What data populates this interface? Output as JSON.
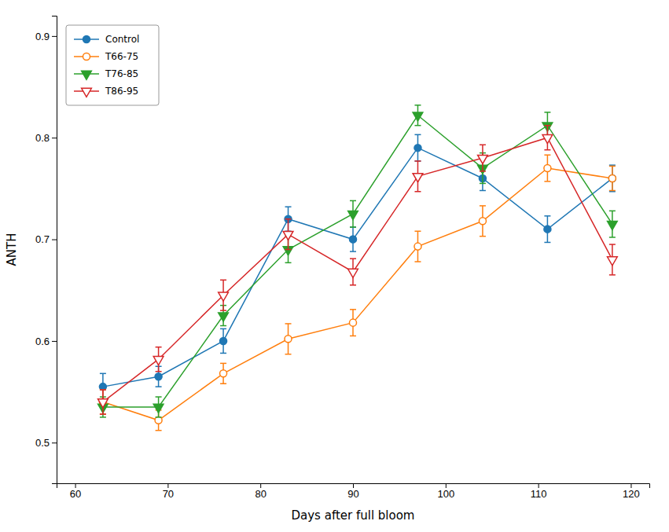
{
  "chart_data": {
    "type": "line",
    "x": [
      63,
      69,
      76,
      83,
      90,
      97,
      104,
      111,
      118
    ],
    "xlabel": "Days after full bloom",
    "ylabel": "ANTH",
    "xlim": [
      58,
      122
    ],
    "ylim": [
      0.46,
      0.92
    ],
    "xticks": [
      60,
      70,
      80,
      90,
      100,
      110,
      120
    ],
    "yticks": [
      0.5,
      0.6,
      0.7,
      0.8,
      0.9
    ],
    "legend": "upper-left",
    "series": [
      {
        "name": "Control",
        "marker": "circle",
        "values": [
          0.555,
          0.565,
          0.6,
          0.72,
          0.7,
          0.79,
          0.76,
          0.71,
          0.76
        ],
        "errors": [
          0.013,
          0.01,
          0.012,
          0.012,
          0.012,
          0.013,
          0.012,
          0.013,
          0.013
        ]
      },
      {
        "name": "T66-75",
        "marker": "circle-open",
        "values": [
          0.54,
          0.522,
          0.568,
          0.602,
          0.618,
          0.693,
          0.718,
          0.77,
          0.76
        ],
        "errors": [
          0.012,
          0.01,
          0.01,
          0.015,
          0.013,
          0.015,
          0.015,
          0.013,
          0.012
        ]
      },
      {
        "name": "T76-85",
        "marker": "triangle-down",
        "values": [
          0.535,
          0.535,
          0.625,
          0.69,
          0.725,
          0.822,
          0.77,
          0.812,
          0.715
        ],
        "errors": [
          0.01,
          0.01,
          0.01,
          0.013,
          0.013,
          0.01,
          0.015,
          0.013,
          0.013
        ]
      },
      {
        "name": "T86-95",
        "marker": "triangle-down-open",
        "values": [
          0.54,
          0.582,
          0.645,
          0.705,
          0.668,
          0.762,
          0.78,
          0.8,
          0.68
        ],
        "errors": [
          0.012,
          0.012,
          0.015,
          0.015,
          0.013,
          0.015,
          0.013,
          0.012,
          0.015
        ]
      }
    ]
  }
}
